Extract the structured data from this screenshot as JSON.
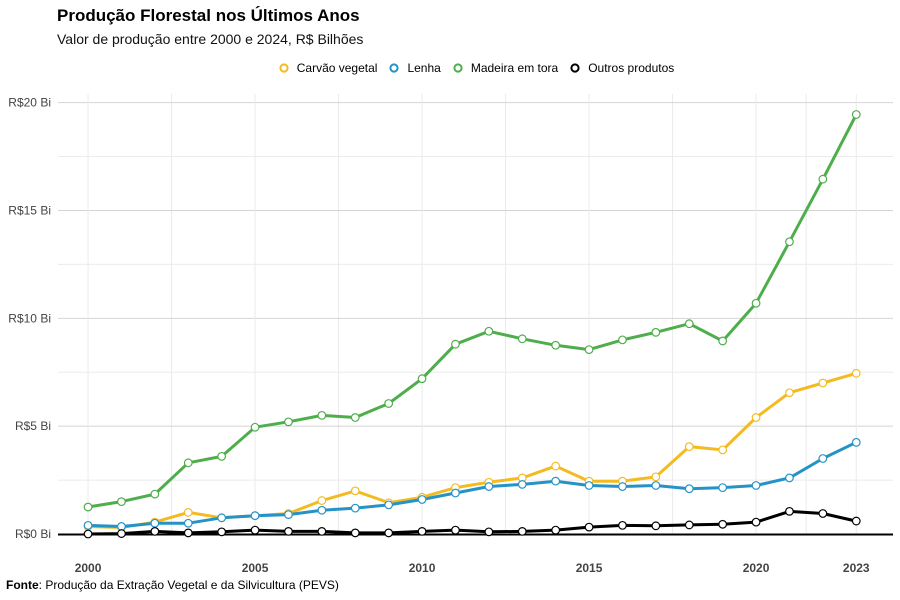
{
  "title": "Produção Florestal nos Últimos Anos",
  "subtitle": "Valor de produção entre 2000 e 2024, R$ Bilhões",
  "caption": {
    "label": "Fonte",
    "text": ": Produção da Extração Vegetal e da Silvicultura (PEVS)"
  },
  "chart_data": {
    "type": "line",
    "title": "Produção Florestal nos Últimos Anos",
    "subtitle": "Valor de produção entre 2000 e 2024, R$ Bilhões",
    "xlabel": "",
    "ylabel": "",
    "x": [
      2000,
      2001,
      2002,
      2003,
      2004,
      2005,
      2006,
      2007,
      2008,
      2009,
      2010,
      2011,
      2012,
      2013,
      2014,
      2015,
      2016,
      2017,
      2018,
      2019,
      2020,
      2021,
      2022,
      2023
    ],
    "xticks": [
      2000,
      2005,
      2010,
      2015,
      2020,
      2023
    ],
    "xtick_labels": [
      "2000",
      "2005",
      "2010",
      "2015",
      "2020",
      "2023"
    ],
    "xlim": [
      1999.1,
      2024.1
    ],
    "yticks": [
      0,
      5,
      10,
      15,
      20
    ],
    "ytick_labels": [
      "R$0 Bi",
      "R$5 Bi",
      "R$10 Bi",
      "R$15 Bi",
      "R$20 Bi"
    ],
    "ylim": [
      0,
      20.4
    ],
    "grid": true,
    "legend_position": "top",
    "series": [
      {
        "name": "Carvão vegetal",
        "color": "#F4BB21",
        "values": [
          0.35,
          0.3,
          0.55,
          1.0,
          0.75,
          0.85,
          0.95,
          1.55,
          2.0,
          1.45,
          1.7,
          2.15,
          2.4,
          2.6,
          3.15,
          2.45,
          2.45,
          2.65,
          4.05,
          3.9,
          5.4,
          6.55,
          7.0,
          7.45
        ]
      },
      {
        "name": "Lenha",
        "color": "#2593C8",
        "values": [
          0.4,
          0.35,
          0.5,
          0.5,
          0.75,
          0.85,
          0.9,
          1.1,
          1.2,
          1.35,
          1.6,
          1.9,
          2.2,
          2.3,
          2.45,
          2.25,
          2.2,
          2.25,
          2.1,
          2.15,
          2.25,
          2.6,
          3.5,
          4.25
        ]
      },
      {
        "name": "Madeira em tora",
        "color": "#4EAE4B",
        "values": [
          1.25,
          1.5,
          1.85,
          3.3,
          3.6,
          4.95,
          5.2,
          5.5,
          5.4,
          6.05,
          7.2,
          8.8,
          9.4,
          9.05,
          8.75,
          8.55,
          9.0,
          9.35,
          9.75,
          8.95,
          10.7,
          13.55,
          16.45,
          19.45
        ]
      },
      {
        "name": "Outros produtos",
        "color": "#000000",
        "values": [
          0.0,
          0.02,
          0.12,
          0.05,
          0.1,
          0.18,
          0.12,
          0.12,
          0.05,
          0.05,
          0.12,
          0.18,
          0.1,
          0.12,
          0.18,
          0.32,
          0.4,
          0.38,
          0.42,
          0.45,
          0.55,
          1.05,
          0.95,
          0.6
        ]
      }
    ]
  }
}
